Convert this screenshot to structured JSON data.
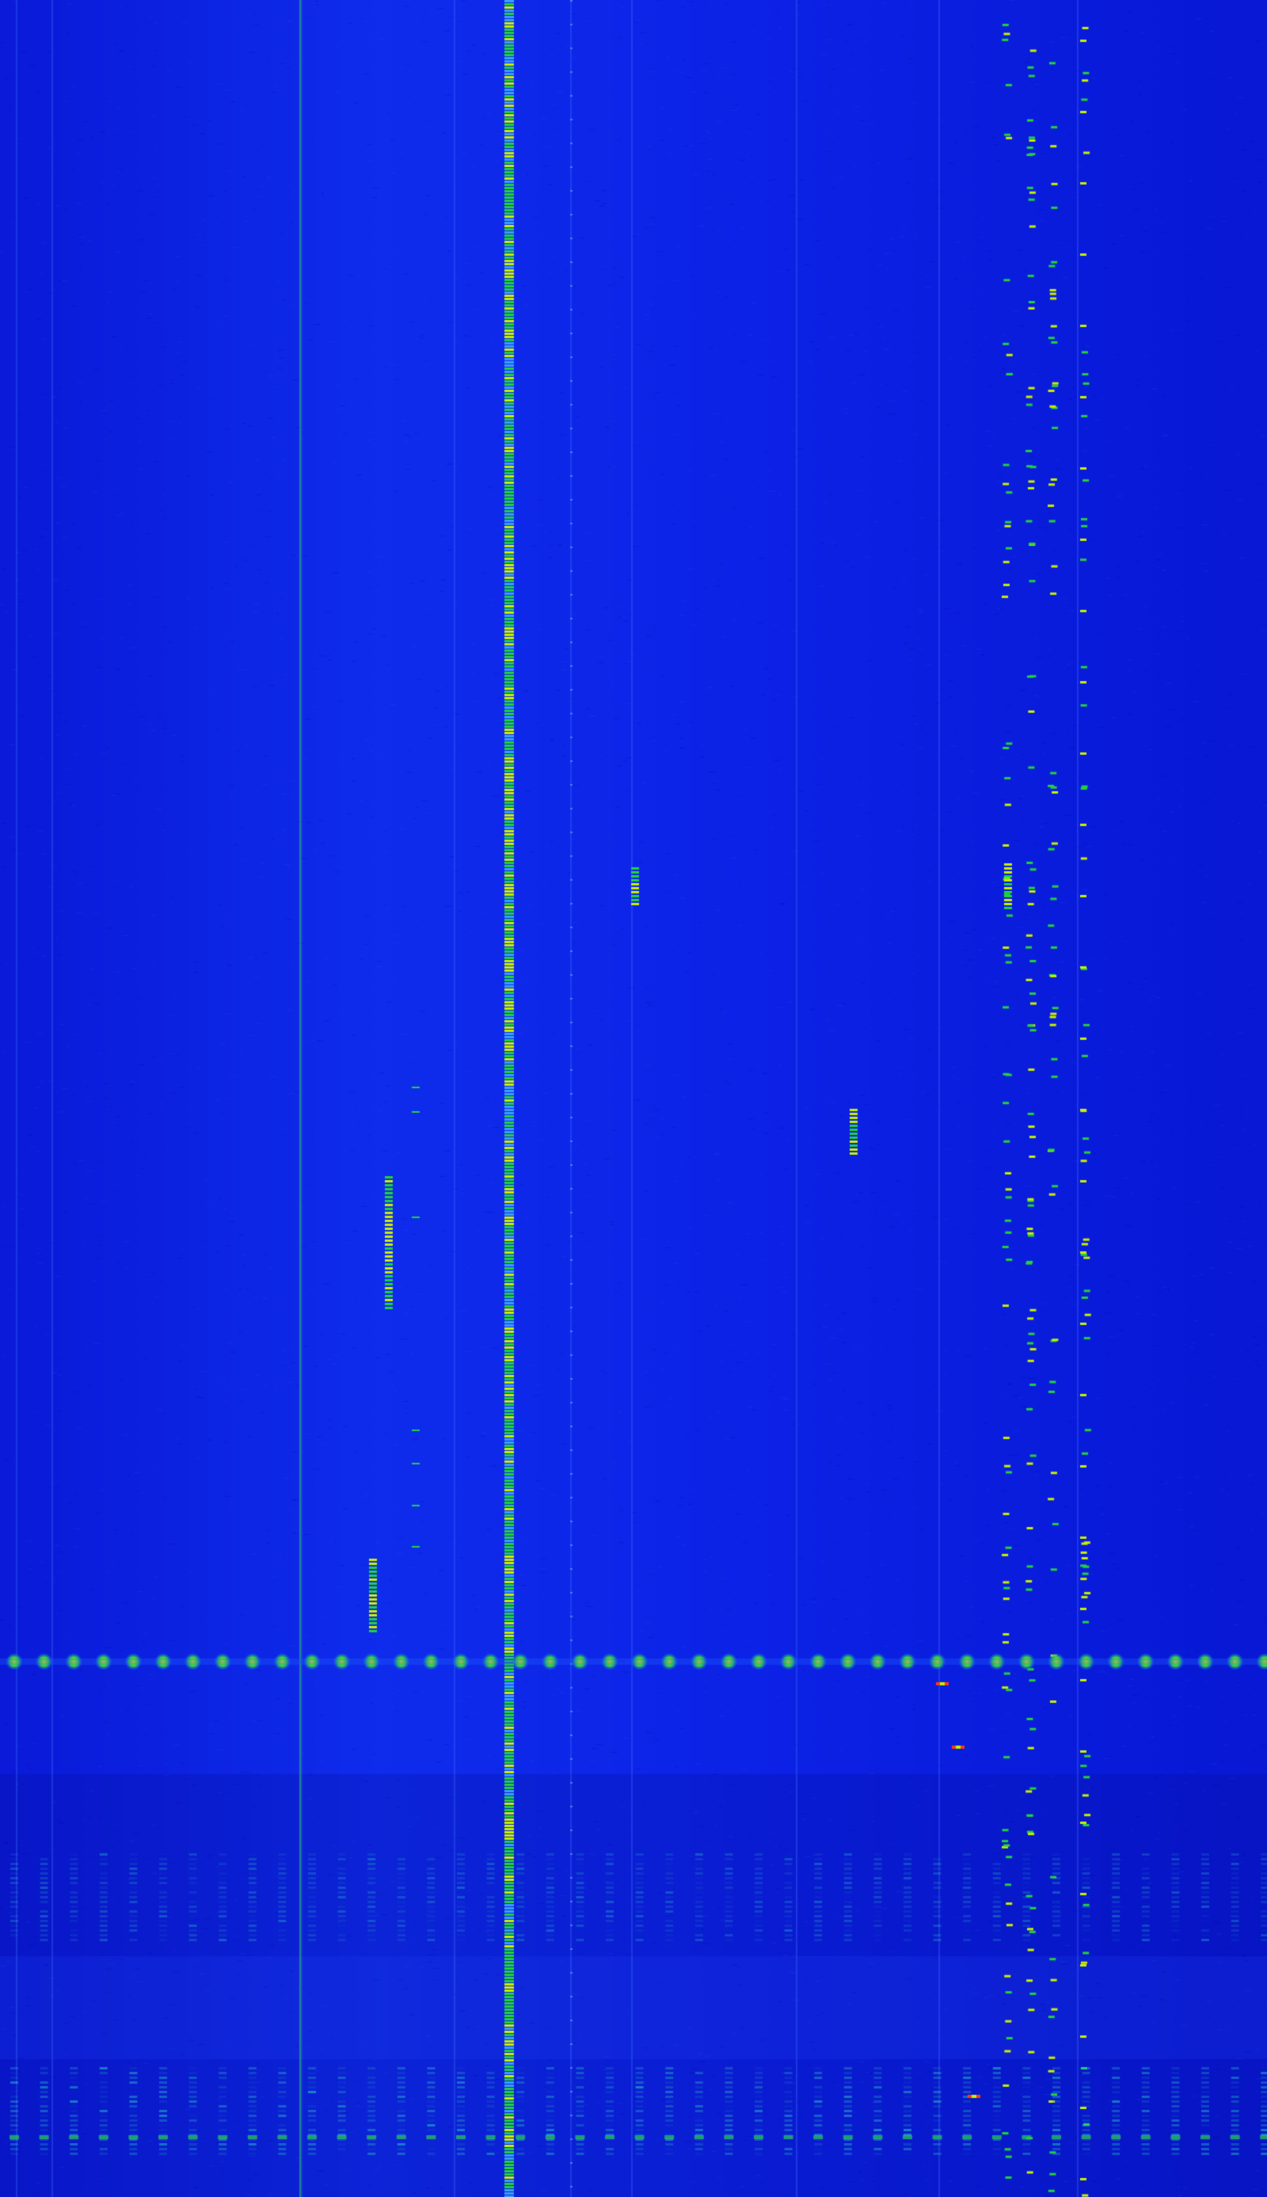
{
  "colors": {
    "background": "#0b1fe3",
    "background_dark": "#0816c8",
    "signal_low": "#1e5cff",
    "signal_mid": "#22d23c",
    "signal_high": "#c8f000",
    "signal_peak": "#ff3a10"
  },
  "icons": []
}
